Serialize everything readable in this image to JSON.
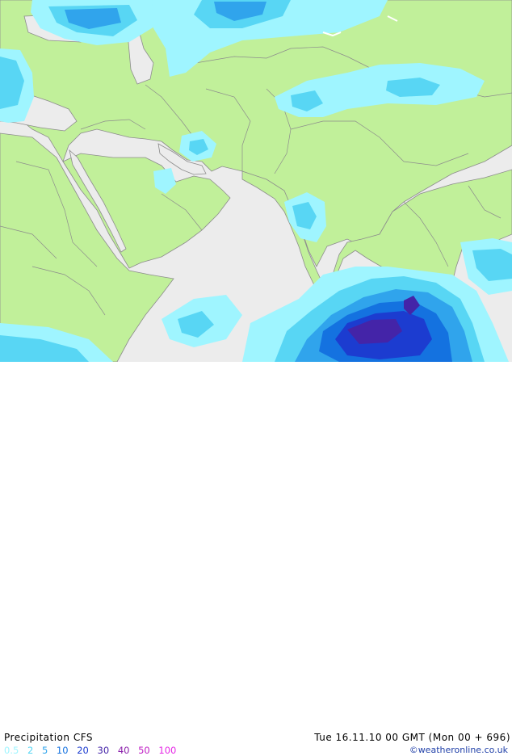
{
  "legend": {
    "title": "Precipitation CFS",
    "scale": [
      {
        "label": "0.5",
        "color": "#9ff5ff"
      },
      {
        "label": "2",
        "color": "#58d6f4"
      },
      {
        "label": "5",
        "color": "#30a4ec"
      },
      {
        "label": "10",
        "color": "#1472e0"
      },
      {
        "label": "20",
        "color": "#1c3cd0"
      },
      {
        "label": "30",
        "color": "#4424a8"
      },
      {
        "label": "40",
        "color": "#8a1eaa"
      },
      {
        "label": "50",
        "color": "#c01ec4"
      },
      {
        "label": "100",
        "color": "#e628e6"
      }
    ]
  },
  "datetime": "Tue 16.11.10 00 GMT (Mon 00 + 696)",
  "credit": "©weatheronline.co.uk",
  "colors": {
    "land": "#c1f09a",
    "sea": "#ececec",
    "border": "#8c8c8c"
  }
}
